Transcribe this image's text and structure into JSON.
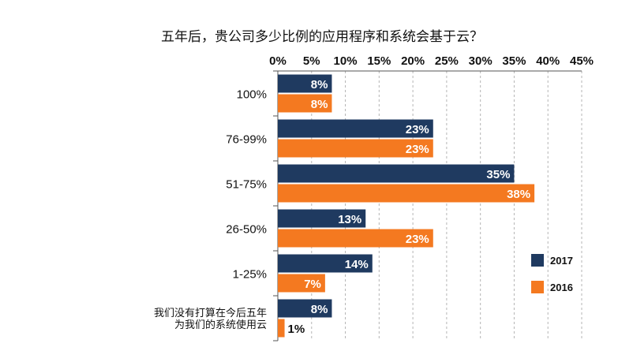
{
  "chart_data": {
    "type": "bar",
    "orientation": "horizontal",
    "title": "五年后，贵公司多少比例的应用程序和系统会基于云？",
    "xlabel": "",
    "ylabel": "",
    "x_ticks": [
      "0%",
      "5%",
      "10%",
      "15%",
      "20%",
      "25%",
      "30%",
      "35%",
      "40%",
      "45%"
    ],
    "xlim": [
      0,
      45
    ],
    "x_axis_position": "top",
    "grid": true,
    "legend_position": "right",
    "categories": [
      [
        "100%"
      ],
      [
        "76-99%"
      ],
      [
        "51-75%"
      ],
      [
        "26-50%"
      ],
      [
        "1-25%"
      ],
      [
        "我们没有打算在今后五年",
        "为我们的系统使用云"
      ]
    ],
    "series": [
      {
        "name": "2017",
        "color": "#1f3a60",
        "label_color": "#ffffff",
        "values": [
          8,
          23,
          35,
          13,
          14,
          8
        ],
        "labels": [
          "8%",
          "23%",
          "35%",
          "13%",
          "14%",
          "8%"
        ]
      },
      {
        "name": "2016",
        "color": "#f47920",
        "label_color": "#ffffff",
        "values": [
          8,
          23,
          38,
          23,
          7,
          1
        ],
        "labels": [
          "8%",
          "23%",
          "38%",
          "23%",
          "7%",
          "1%"
        ]
      }
    ]
  }
}
